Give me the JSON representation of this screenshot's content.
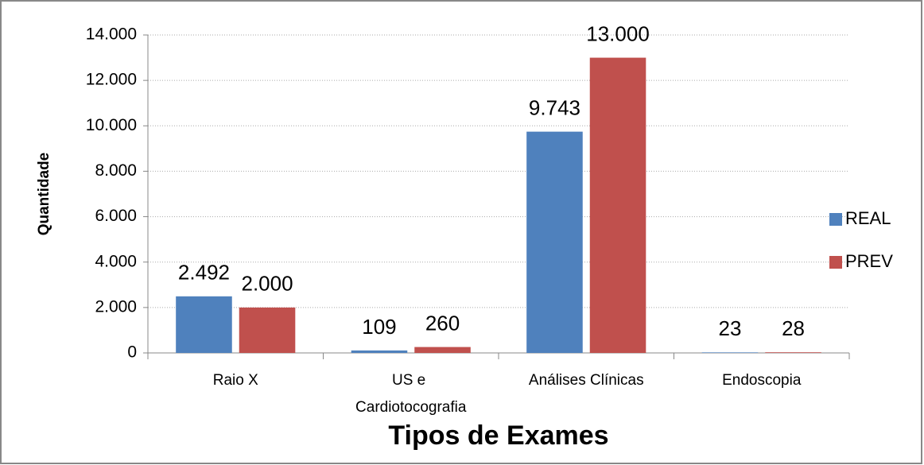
{
  "chart_data": {
    "type": "bar",
    "xlabel": "Tipos de Exames",
    "ylabel": "Quantidade",
    "categories": [
      "Raio X",
      "US e Cardiotocografia",
      "Análises Clínicas",
      "Endoscopia"
    ],
    "series": [
      {
        "name": "REAL",
        "color": "#4f81bd",
        "values": [
          2492,
          109,
          9743,
          23
        ],
        "value_labels": [
          "2.492",
          "109",
          "9.743",
          "23"
        ]
      },
      {
        "name": "PREV",
        "color": "#c0504d",
        "values": [
          2000,
          260,
          13000,
          28
        ],
        "value_labels": [
          "2.000",
          "260",
          "13.000",
          "28"
        ]
      }
    ],
    "ylim": [
      0,
      14000
    ],
    "yticks": [
      0,
      {
        "value": 2000,
        "label": "2.000"
      },
      {
        "value": 4000,
        "label": "4.000"
      },
      {
        "value": 6000,
        "label": "6.000"
      },
      {
        "value": 8000,
        "label": "8.000"
      },
      {
        "value": 10000,
        "label": "10.000"
      },
      {
        "value": 12000,
        "label": "12.000"
      },
      {
        "value": 14000,
        "label": "14.000"
      }
    ],
    "grid": true,
    "legend": "right"
  }
}
